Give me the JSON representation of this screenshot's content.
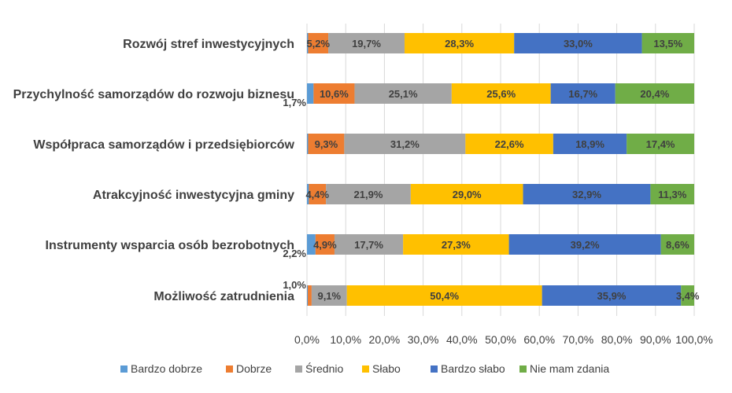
{
  "chart_data": {
    "type": "bar",
    "orientation": "horizontal",
    "stacked": "percent",
    "title": "",
    "xlabel": "",
    "ylabel": "",
    "xlim": [
      0,
      100
    ],
    "grid": true,
    "legend_position": "bottom",
    "categories": [
      "Rozwój stref inwestycyjnych",
      "Przychylność samorządów do rozwoju biznesu",
      "Współpraca samorządów i przedsiębiorców",
      "Atrakcyjność inwestycyjna gminy",
      "Instrumenty wsparcia osób bezrobotnych",
      "Możliwość zatrudnienia"
    ],
    "ticks": [
      "0,0%",
      "10,0%",
      "20,0%",
      "30,0%",
      "40,0%",
      "50,0%",
      "60,0%",
      "70,0%",
      "80,0%",
      "90,0%",
      "100,0%"
    ],
    "series": [
      {
        "name": "Bardzo dobrze",
        "color": "#5B9BD5",
        "values": [
          0.3,
          1.7,
          0.3,
          0.5,
          2.2,
          0.2
        ],
        "labels": [
          "",
          "1,7%",
          "",
          "",
          "2,2%",
          ""
        ]
      },
      {
        "name": "Dobrze",
        "color": "#ED7D31",
        "values": [
          5.2,
          10.6,
          9.3,
          4.4,
          4.9,
          1.0
        ],
        "labels": [
          "5,2%",
          "10,6%",
          "9,3%",
          "4,4%",
          "4,9%",
          "1,0%"
        ]
      },
      {
        "name": "Średnio",
        "color": "#A5A5A5",
        "values": [
          19.7,
          25.1,
          31.2,
          21.9,
          17.7,
          9.1
        ],
        "labels": [
          "19,7%",
          "25,1%",
          "31,2%",
          "21,9%",
          "17,7%",
          "9,1%"
        ]
      },
      {
        "name": "Słabo",
        "color": "#FFC000",
        "values": [
          28.3,
          25.6,
          22.6,
          29.0,
          27.3,
          50.4
        ],
        "labels": [
          "28,3%",
          "25,6%",
          "22,6%",
          "29,0%",
          "27,3%",
          "50,4%"
        ]
      },
      {
        "name": "Bardzo słabo",
        "color": "#4472C4",
        "values": [
          33.0,
          16.7,
          18.9,
          32.9,
          39.2,
          35.9
        ],
        "labels": [
          "33,0%",
          "16,7%",
          "18,9%",
          "32,9%",
          "39,2%",
          "35,9%"
        ]
      },
      {
        "name": "Nie mam zdania",
        "color": "#70AD47",
        "values": [
          13.5,
          20.4,
          17.4,
          11.3,
          8.6,
          3.4
        ],
        "labels": [
          "13,5%",
          "20,4%",
          "17,4%",
          "11,3%",
          "8,6%",
          "3,4%"
        ]
      }
    ]
  }
}
